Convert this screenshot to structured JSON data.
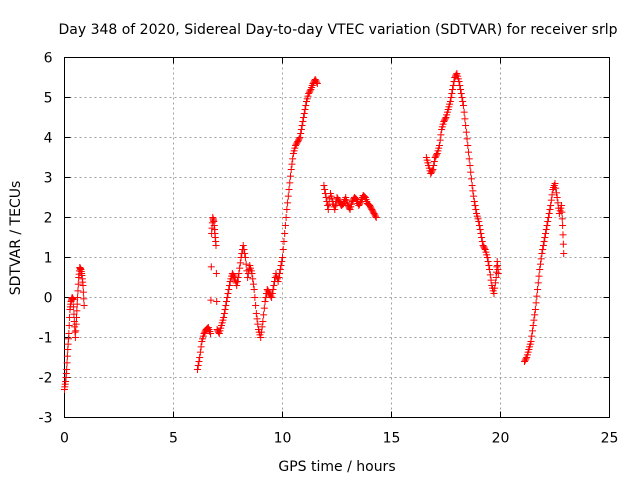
{
  "chart_data": {
    "type": "scatter",
    "title": "Day 348 of 2020, Sidereal Day-to-day VTEC variation (SDTVAR) for receiver srlp",
    "xlabel": "GPS time / hours",
    "ylabel": "SDTVAR / TECUs",
    "xlim": [
      0,
      25
    ],
    "ylim": [
      -3,
      6
    ],
    "xticks": [
      "0",
      "5",
      "10",
      "15",
      "20",
      "25"
    ],
    "yticks": [
      "-3",
      "-2",
      "-1",
      "0",
      "1",
      "2",
      "3",
      "4",
      "5",
      "6"
    ],
    "grid": true,
    "marker": "+",
    "color": "#ff0000",
    "series": [
      {
        "name": "srlp",
        "segments": [
          [
            [
              0.0,
              -2.3
            ],
            [
              0.05,
              -2.1
            ],
            [
              0.1,
              -1.8
            ],
            [
              0.15,
              -1.3
            ],
            [
              0.2,
              -0.9
            ],
            [
              0.25,
              -0.3
            ],
            [
              0.3,
              -0.1
            ],
            [
              0.35,
              0.0
            ],
            [
              0.4,
              -0.05
            ],
            [
              0.45,
              -0.6
            ],
            [
              0.5,
              -1.0
            ],
            [
              0.55,
              -0.5
            ],
            [
              0.6,
              0.0
            ],
            [
              0.65,
              0.5
            ],
            [
              0.7,
              0.75
            ],
            [
              0.75,
              0.7
            ],
            [
              0.8,
              0.55
            ],
            [
              0.85,
              0.3
            ],
            [
              0.9,
              -0.2
            ]
          ],
          [
            [
              6.1,
              -1.8
            ],
            [
              6.2,
              -1.5
            ],
            [
              6.3,
              -1.1
            ],
            [
              6.4,
              -0.9
            ],
            [
              6.5,
              -0.8
            ],
            [
              6.6,
              -0.75
            ],
            [
              6.7,
              -0.9
            ],
            [
              6.75,
              1.6
            ],
            [
              6.8,
              2.0
            ],
            [
              6.85,
              1.9
            ],
            [
              6.9,
              1.6
            ],
            [
              6.95,
              1.3
            ],
            [
              7.0,
              -0.8
            ],
            [
              7.1,
              -0.9
            ],
            [
              7.2,
              -0.7
            ],
            [
              7.3,
              -0.5
            ],
            [
              7.4,
              -0.2
            ],
            [
              7.5,
              0.1
            ],
            [
              7.6,
              0.4
            ],
            [
              7.7,
              0.6
            ],
            [
              7.8,
              0.5
            ],
            [
              7.9,
              0.3
            ],
            [
              8.0,
              0.6
            ],
            [
              8.1,
              1.0
            ],
            [
              8.2,
              1.3
            ],
            [
              8.3,
              1.0
            ],
            [
              8.4,
              0.5
            ],
            [
              8.5,
              0.8
            ],
            [
              8.6,
              0.6
            ],
            [
              8.7,
              0.2
            ],
            [
              8.8,
              -0.4
            ],
            [
              8.9,
              -0.8
            ],
            [
              9.0,
              -1.0
            ],
            [
              9.1,
              -0.6
            ],
            [
              9.2,
              -0.1
            ],
            [
              9.3,
              0.2
            ],
            [
              9.4,
              0.1
            ],
            [
              9.5,
              0.0
            ],
            [
              9.6,
              0.3
            ],
            [
              9.7,
              0.6
            ],
            [
              9.8,
              0.4
            ],
            [
              9.9,
              0.7
            ],
            [
              10.0,
              1.0
            ],
            [
              10.1,
              1.6
            ],
            [
              10.2,
              2.2
            ],
            [
              10.3,
              2.7
            ],
            [
              10.4,
              3.2
            ],
            [
              10.5,
              3.6
            ],
            [
              10.6,
              3.8
            ],
            [
              10.7,
              3.9
            ],
            [
              10.8,
              4.0
            ],
            [
              10.9,
              4.3
            ],
            [
              11.0,
              4.6
            ],
            [
              11.1,
              4.9
            ],
            [
              11.2,
              5.1
            ],
            [
              11.3,
              5.2
            ],
            [
              11.4,
              5.35
            ],
            [
              11.5,
              5.45
            ],
            [
              11.6,
              5.35
            ]
          ],
          [
            [
              11.9,
              2.8
            ],
            [
              12.0,
              2.5
            ],
            [
              12.1,
              2.2
            ],
            [
              12.2,
              2.6
            ],
            [
              12.3,
              2.4
            ],
            [
              12.4,
              2.2
            ],
            [
              12.5,
              2.5
            ],
            [
              12.6,
              2.4
            ],
            [
              12.7,
              2.3
            ],
            [
              12.8,
              2.35
            ],
            [
              12.9,
              2.5
            ],
            [
              13.0,
              2.3
            ],
            [
              13.1,
              2.2
            ],
            [
              13.2,
              2.4
            ],
            [
              13.3,
              2.5
            ],
            [
              13.4,
              2.45
            ],
            [
              13.5,
              2.3
            ],
            [
              13.6,
              2.4
            ],
            [
              13.7,
              2.55
            ],
            [
              13.8,
              2.5
            ],
            [
              13.9,
              2.35
            ],
            [
              14.0,
              2.3
            ],
            [
              14.1,
              2.2
            ],
            [
              14.2,
              2.1
            ],
            [
              14.3,
              2.0
            ]
          ],
          [
            [
              16.6,
              3.5
            ],
            [
              16.7,
              3.3
            ],
            [
              16.8,
              3.1
            ],
            [
              16.9,
              3.2
            ],
            [
              17.0,
              3.5
            ],
            [
              17.1,
              3.6
            ],
            [
              17.2,
              3.8
            ],
            [
              17.3,
              4.2
            ],
            [
              17.4,
              4.4
            ],
            [
              17.5,
              4.5
            ],
            [
              17.6,
              4.7
            ],
            [
              17.7,
              4.9
            ],
            [
              17.8,
              5.2
            ],
            [
              17.9,
              5.5
            ],
            [
              18.0,
              5.6
            ],
            [
              18.1,
              5.4
            ],
            [
              18.2,
              5.1
            ],
            [
              18.3,
              4.8
            ],
            [
              18.4,
              4.3
            ],
            [
              18.5,
              3.8
            ],
            [
              18.6,
              3.3
            ],
            [
              18.7,
              2.8
            ],
            [
              18.8,
              2.4
            ],
            [
              18.9,
              2.1
            ],
            [
              19.0,
              1.9
            ],
            [
              19.1,
              1.6
            ],
            [
              19.2,
              1.3
            ],
            [
              19.3,
              1.2
            ],
            [
              19.4,
              1.0
            ],
            [
              19.5,
              0.7
            ],
            [
              19.6,
              0.3
            ],
            [
              19.7,
              0.1
            ],
            [
              19.8,
              0.5
            ],
            [
              19.85,
              0.9
            ],
            [
              19.9,
              0.6
            ]
          ],
          [
            [
              21.1,
              -1.6
            ],
            [
              21.2,
              -1.5
            ],
            [
              21.3,
              -1.3
            ],
            [
              21.4,
              -1.1
            ],
            [
              21.5,
              -0.7
            ],
            [
              21.6,
              -0.3
            ],
            [
              21.7,
              0.2
            ],
            [
              21.8,
              0.7
            ],
            [
              21.9,
              1.1
            ],
            [
              22.0,
              1.4
            ],
            [
              22.1,
              1.7
            ],
            [
              22.2,
              2.0
            ],
            [
              22.3,
              2.3
            ],
            [
              22.4,
              2.7
            ],
            [
              22.5,
              2.85
            ],
            [
              22.6,
              2.5
            ],
            [
              22.7,
              2.1
            ],
            [
              22.8,
              2.3
            ],
            [
              22.85,
              1.8
            ],
            [
              22.9,
              1.1
            ]
          ]
        ]
      }
    ]
  }
}
